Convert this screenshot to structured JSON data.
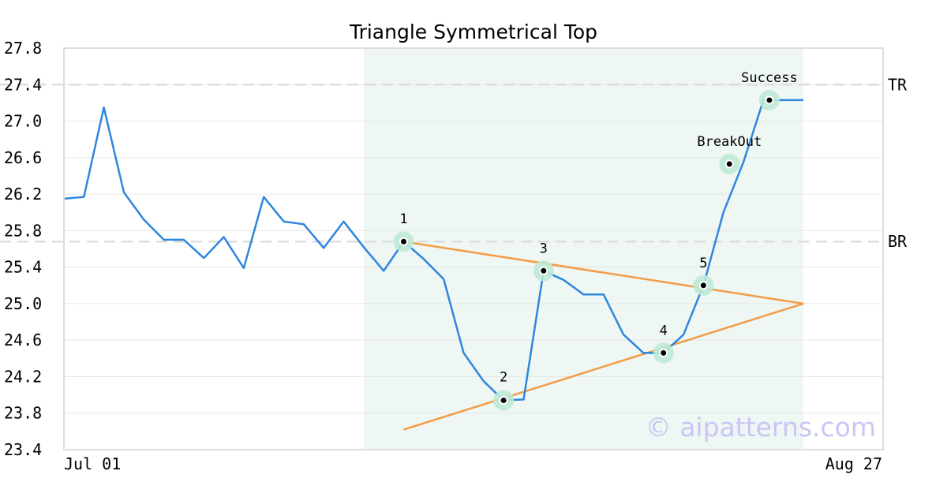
{
  "chart_data": {
    "type": "line",
    "title": "Triangle Symmetrical Top",
    "xlabel": "",
    "ylabel": "",
    "ylim": [
      23.4,
      27.8
    ],
    "y_ticks": [
      "27.8",
      "27.4",
      "27.0",
      "26.6",
      "26.2",
      "25.8",
      "25.4",
      "25.0",
      "24.6",
      "24.2",
      "23.8",
      "23.4"
    ],
    "x_tick_labels": {
      "start": "Jul 01",
      "end": "Aug 27"
    },
    "x_count": 38,
    "series": [
      {
        "values": [
          26.15,
          26.17,
          27.15,
          26.22,
          25.92,
          25.7,
          25.7,
          25.5,
          25.73,
          25.39,
          26.17,
          25.9,
          25.87,
          25.61,
          25.9,
          25.62,
          25.36,
          25.68,
          25.49,
          25.27,
          24.46,
          24.15,
          23.94,
          23.95,
          25.36,
          25.26,
          25.1,
          25.1,
          24.66,
          24.46,
          24.46,
          24.66,
          25.2,
          26.0,
          26.55,
          27.23,
          27.23,
          27.23
        ],
        "color": "#2e86de"
      }
    ],
    "levels": [
      {
        "label": "TR",
        "value": 27.4
      },
      {
        "label": "BR",
        "value": 25.68
      }
    ],
    "highlight_range": {
      "from_index": 15,
      "to_index": 37
    },
    "trendlines": [
      {
        "from": {
          "index": 17,
          "value": 25.68
        },
        "to": {
          "index": 37,
          "value": 25.0
        }
      },
      {
        "from": {
          "index": 17,
          "value": 23.62
        },
        "to": {
          "index": 37,
          "value": 25.0
        }
      }
    ],
    "points": [
      {
        "label": "1",
        "index": 17,
        "value": 25.68
      },
      {
        "label": "2",
        "index": 22,
        "value": 23.94
      },
      {
        "label": "3",
        "index": 24,
        "value": 25.36
      },
      {
        "label": "4",
        "index": 30,
        "value": 24.46
      },
      {
        "label": "5",
        "index": 32,
        "value": 25.2
      },
      {
        "label": "BreakOut",
        "index": 33.3,
        "value": 26.53
      },
      {
        "label": "Success",
        "index": 35.3,
        "value": 27.23
      }
    ],
    "grid": true,
    "colors": {
      "line": "#2e86de",
      "trendline": "#f39c45",
      "highlight": "#eef7f3",
      "point_halo": "#bfe9d6",
      "level_line": "#dddddd"
    },
    "watermark": "© aipatterns.com"
  }
}
